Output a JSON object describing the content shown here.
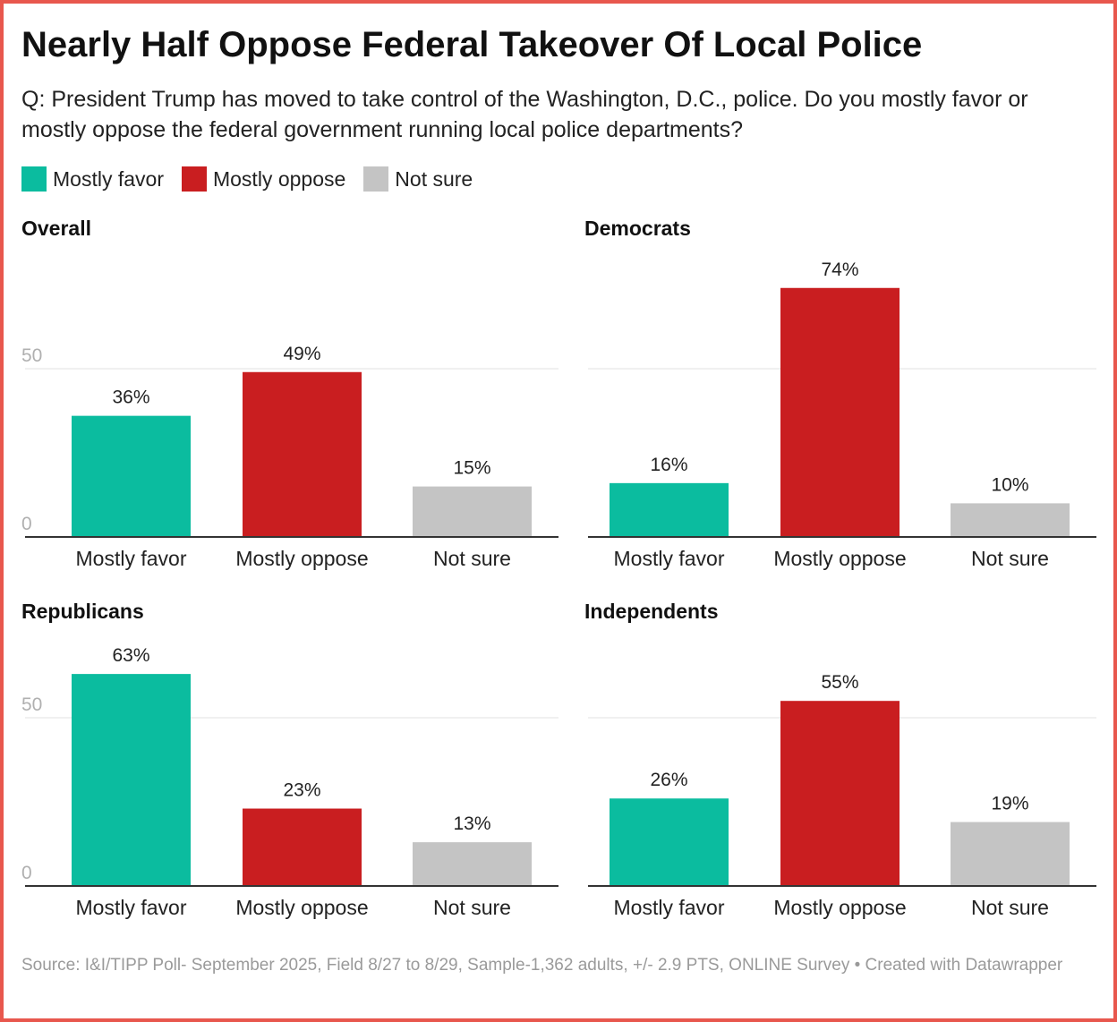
{
  "title": "Nearly Half Oppose Federal Takeover Of Local Police",
  "subtitle": "Q: President Trump has moved to take control of the Washington, D.C., police. Do you mostly favor or mostly oppose the federal government running local police departments?",
  "legend": [
    {
      "label": "Mostly favor",
      "color": "#0bbc9f"
    },
    {
      "label": "Mostly oppose",
      "color": "#c91e20"
    },
    {
      "label": "Not sure",
      "color": "#c4c4c4"
    }
  ],
  "source": "Source: I&I/TIPP Poll- September 2025, Field 8/27 to 8/29, Sample-1,362 adults, +/- 2.9 PTS, ONLINE Survey • Created with Datawrapper",
  "chart_data": [
    {
      "type": "bar",
      "title": "Overall",
      "categories": [
        "Mostly favor",
        "Mostly oppose",
        "Not sure"
      ],
      "values": [
        36,
        49,
        15
      ],
      "labels": [
        "36%",
        "49%",
        "15%"
      ],
      "colors": [
        "#0bbc9f",
        "#c91e20",
        "#c4c4c4"
      ],
      "yticks": [
        0,
        50
      ],
      "ytick_labels": [
        "0",
        "50"
      ],
      "ylim": [
        0,
        74
      ]
    },
    {
      "type": "bar",
      "title": "Democrats",
      "categories": [
        "Mostly favor",
        "Mostly oppose",
        "Not sure"
      ],
      "values": [
        16,
        74,
        10
      ],
      "labels": [
        "16%",
        "74%",
        "10%"
      ],
      "colors": [
        "#0bbc9f",
        "#c91e20",
        "#c4c4c4"
      ],
      "yticks": [
        0,
        50
      ],
      "ytick_labels": [
        "",
        ""
      ],
      "ylim": [
        0,
        74
      ]
    },
    {
      "type": "bar",
      "title": "Republicans",
      "categories": [
        "Mostly favor",
        "Mostly oppose",
        "Not sure"
      ],
      "values": [
        63,
        23,
        13
      ],
      "labels": [
        "63%",
        "23%",
        "13%"
      ],
      "colors": [
        "#0bbc9f",
        "#c91e20",
        "#c4c4c4"
      ],
      "yticks": [
        0,
        50
      ],
      "ytick_labels": [
        "0",
        "50"
      ],
      "ylim": [
        0,
        74
      ]
    },
    {
      "type": "bar",
      "title": "Independents",
      "categories": [
        "Mostly favor",
        "Mostly oppose",
        "Not sure"
      ],
      "values": [
        26,
        55,
        19
      ],
      "labels": [
        "26%",
        "55%",
        "19%"
      ],
      "colors": [
        "#0bbc9f",
        "#c91e20",
        "#c4c4c4"
      ],
      "yticks": [
        0,
        50
      ],
      "ytick_labels": [
        "",
        ""
      ],
      "ylim": [
        0,
        74
      ]
    }
  ]
}
